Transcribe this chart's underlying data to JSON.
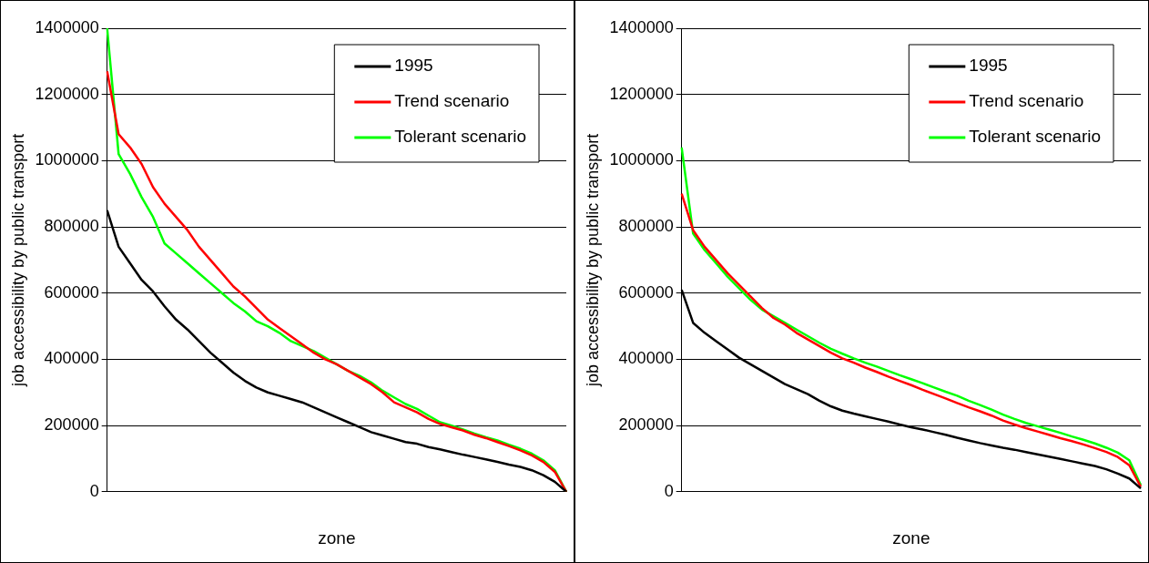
{
  "chart_data": [
    {
      "type": "line",
      "xlabel": "zone",
      "ylabel": "job accessibility by public transport",
      "categories": [
        null,
        null,
        null,
        null,
        null,
        null,
        null,
        null,
        null,
        null,
        null,
        null,
        null,
        null,
        null,
        null,
        null,
        null,
        null,
        null,
        null,
        null,
        null,
        null,
        null,
        null,
        null,
        null,
        null,
        null,
        null,
        null,
        null,
        null,
        null,
        null,
        null,
        null,
        null,
        null,
        null
      ],
      "series": [
        {
          "name": "1995",
          "color": "#000000",
          "values": [
            850000,
            740000,
            690000,
            640000,
            605000,
            560000,
            520000,
            490000,
            455000,
            420000,
            390000,
            360000,
            335000,
            315000,
            300000,
            290000,
            280000,
            270000,
            255000,
            240000,
            225000,
            210000,
            195000,
            180000,
            170000,
            160000,
            150000,
            145000,
            135000,
            128000,
            120000,
            112000,
            105000,
            98000,
            90000,
            82000,
            75000,
            65000,
            50000,
            30000,
            0
          ]
        },
        {
          "name": "Trend scenario",
          "color": "#ff0000",
          "values": [
            1270000,
            1080000,
            1040000,
            990000,
            920000,
            870000,
            830000,
            790000,
            740000,
            700000,
            660000,
            620000,
            590000,
            555000,
            520000,
            495000,
            470000,
            445000,
            420000,
            400000,
            385000,
            365000,
            345000,
            325000,
            300000,
            270000,
            255000,
            240000,
            220000,
            205000,
            195000,
            185000,
            172000,
            162000,
            150000,
            138000,
            125000,
            110000,
            90000,
            60000,
            0
          ]
        },
        {
          "name": "Tolerant scenario",
          "color": "#00ff00",
          "values": [
            1400000,
            1020000,
            960000,
            890000,
            830000,
            750000,
            720000,
            690000,
            660000,
            630000,
            600000,
            570000,
            545000,
            515000,
            500000,
            480000,
            455000,
            440000,
            425000,
            405000,
            385000,
            365000,
            350000,
            330000,
            305000,
            285000,
            265000,
            250000,
            230000,
            210000,
            200000,
            188000,
            176000,
            165000,
            155000,
            142000,
            130000,
            115000,
            95000,
            65000,
            0
          ]
        }
      ],
      "ylim": [
        0,
        1400000
      ],
      "yticks": [
        0,
        200000,
        400000,
        600000,
        800000,
        1000000,
        1200000,
        1400000
      ],
      "grid": "y",
      "legend": "top right",
      "marker": "none",
      "line_style": "solid"
    },
    {
      "type": "line",
      "xlabel": "zone",
      "ylabel": "job accessibility by public transport",
      "categories": [
        null,
        null,
        null,
        null,
        null,
        null,
        null,
        null,
        null,
        null,
        null,
        null,
        null,
        null,
        null,
        null,
        null,
        null,
        null,
        null,
        null,
        null,
        null,
        null,
        null,
        null,
        null,
        null,
        null,
        null,
        null,
        null,
        null,
        null,
        null,
        null,
        null,
        null,
        null,
        null,
        null
      ],
      "series": [
        {
          "name": "1995",
          "color": "#000000",
          "values": [
            610000,
            510000,
            480000,
            455000,
            430000,
            405000,
            385000,
            365000,
            345000,
            325000,
            310000,
            295000,
            275000,
            258000,
            245000,
            236000,
            228000,
            220000,
            212000,
            203000,
            195000,
            188000,
            180000,
            172000,
            163000,
            155000,
            147000,
            140000,
            133000,
            127000,
            120000,
            113000,
            106000,
            99000,
            92000,
            85000,
            78000,
            68000,
            55000,
            40000,
            10000
          ]
        },
        {
          "name": "Trend scenario",
          "color": "#ff0000",
          "values": [
            900000,
            790000,
            740000,
            700000,
            660000,
            625000,
            590000,
            555000,
            525000,
            505000,
            480000,
            460000,
            440000,
            420000,
            403000,
            390000,
            375000,
            362000,
            348000,
            335000,
            322000,
            308000,
            295000,
            282000,
            268000,
            255000,
            243000,
            230000,
            215000,
            203000,
            192000,
            182000,
            172000,
            162000,
            153000,
            143000,
            132000,
            120000,
            105000,
            80000,
            15000
          ]
        },
        {
          "name": "Tolerant scenario",
          "color": "#00ff00",
          "values": [
            1040000,
            780000,
            730000,
            690000,
            650000,
            615000,
            580000,
            550000,
            530000,
            510000,
            490000,
            470000,
            450000,
            432000,
            417000,
            403000,
            390000,
            378000,
            365000,
            352000,
            340000,
            328000,
            315000,
            302000,
            290000,
            275000,
            262000,
            248000,
            233000,
            220000,
            208000,
            198000,
            188000,
            178000,
            167000,
            157000,
            146000,
            133000,
            118000,
            95000,
            20000
          ]
        }
      ],
      "ylim": [
        0,
        1400000
      ],
      "yticks": [
        0,
        200000,
        400000,
        600000,
        800000,
        1000000,
        1200000,
        1400000
      ],
      "grid": "y",
      "legend": "top right",
      "marker": "none",
      "line_style": "solid"
    }
  ]
}
